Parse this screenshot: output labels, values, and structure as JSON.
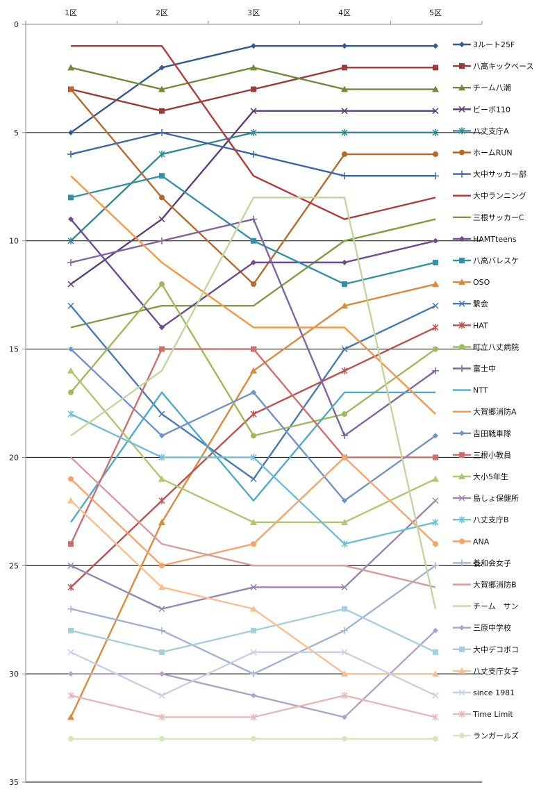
{
  "chart_data": {
    "type": "line",
    "title": "",
    "xlabel": "",
    "ylabel": "",
    "categories": [
      "1区",
      "2区",
      "3区",
      "4区",
      "5区"
    ],
    "ylim": [
      0,
      35
    ],
    "y_inverted": true,
    "yticks": [
      0,
      5,
      10,
      15,
      20,
      25,
      30,
      35
    ],
    "grid": "horizontal major",
    "legend_position": "right",
    "series": [
      {
        "name": "3ルート25F",
        "color": "#2e5a96",
        "marker": "diamond",
        "values": [
          5,
          2,
          1,
          1,
          1
        ]
      },
      {
        "name": "八高キックベース",
        "color": "#9a3b38",
        "marker": "square",
        "values": [
          3,
          4,
          3,
          2,
          2
        ]
      },
      {
        "name": "チーム八潮",
        "color": "#6f8c36",
        "marker": "triangle",
        "values": [
          2,
          3,
          2,
          3,
          3
        ]
      },
      {
        "name": "ビーボ110",
        "color": "#5a3f79",
        "marker": "x",
        "values": [
          12,
          9,
          4,
          4,
          4
        ]
      },
      {
        "name": "八丈支庁A",
        "color": "#2e8a99",
        "marker": "star",
        "values": [
          10,
          6,
          5,
          5,
          5
        ]
      },
      {
        "name": "ホームRUN",
        "color": "#b8692a",
        "marker": "circle",
        "values": [
          3,
          8,
          12,
          6,
          6
        ]
      },
      {
        "name": "大中サッカー部",
        "color": "#3a67a8",
        "marker": "plus",
        "values": [
          6,
          5,
          6,
          7,
          7
        ]
      },
      {
        "name": "大中ランニング",
        "color": "#b23a36",
        "marker": "none",
        "values": [
          1,
          1,
          7,
          9,
          8
        ]
      },
      {
        "name": "三根サッカーC",
        "color": "#7d9c3c",
        "marker": "none",
        "values": [
          14,
          13,
          13,
          10,
          9
        ]
      },
      {
        "name": "HAMTteens",
        "color": "#6c4b92",
        "marker": "diamond",
        "values": [
          9,
          14,
          11,
          11,
          10
        ]
      },
      {
        "name": "八高バレスケ",
        "color": "#3390a8",
        "marker": "square",
        "values": [
          8,
          7,
          10,
          12,
          11
        ]
      },
      {
        "name": "OSO",
        "color": "#dc8a3a",
        "marker": "triangle",
        "values": [
          32,
          23,
          16,
          13,
          12
        ]
      },
      {
        "name": "繋会",
        "color": "#4579b8",
        "marker": "x",
        "values": [
          13,
          18,
          21,
          15,
          13
        ]
      },
      {
        "name": "HAT",
        "color": "#c0504d",
        "marker": "star",
        "values": [
          26,
          22,
          18,
          16,
          14
        ]
      },
      {
        "name": "町立八丈病院",
        "color": "#9bbb59",
        "marker": "circle",
        "values": [
          17,
          12,
          19,
          18,
          15
        ]
      },
      {
        "name": "富士中",
        "color": "#8064a2",
        "marker": "plus",
        "values": [
          11,
          10,
          9,
          19,
          16
        ]
      },
      {
        "name": "NTT",
        "color": "#4bacc6",
        "marker": "none",
        "values": [
          23,
          17,
          22,
          17,
          17
        ]
      },
      {
        "name": "大賀郷消防A",
        "color": "#f79646",
        "marker": "none",
        "values": [
          7,
          11,
          14,
          14,
          18
        ]
      },
      {
        "name": "吉田戦車隊",
        "color": "#6f93c9",
        "marker": "diamond",
        "values": [
          15,
          19,
          17,
          22,
          19
        ]
      },
      {
        "name": "三根小教員",
        "color": "#d06e6b",
        "marker": "square",
        "values": [
          24,
          15,
          15,
          20,
          20
        ]
      },
      {
        "name": "大小5年生",
        "color": "#adc86e",
        "marker": "triangle",
        "values": [
          16,
          21,
          23,
          23,
          21
        ]
      },
      {
        "name": "島しょ保健所",
        "color": "#9985b5",
        "marker": "x",
        "values": [
          25,
          27,
          26,
          26,
          22
        ]
      },
      {
        "name": "八丈支庁B",
        "color": "#6cbfd5",
        "marker": "star",
        "values": [
          18,
          20,
          20,
          24,
          23
        ]
      },
      {
        "name": "ANA",
        "color": "#f9a26a",
        "marker": "circle",
        "values": [
          21,
          25,
          24,
          20,
          24
        ]
      },
      {
        "name": "養和会女子",
        "color": "#9fb2d6",
        "marker": "plus",
        "values": [
          27,
          28,
          30,
          28,
          25
        ]
      },
      {
        "name": "大賀郷消防B",
        "color": "#d99a98",
        "marker": "none",
        "values": [
          20,
          24,
          25,
          25,
          26
        ]
      },
      {
        "name": "チーム　サン",
        "color": "#c3d69b",
        "marker": "none",
        "values": [
          19,
          16,
          8,
          8,
          27
        ]
      },
      {
        "name": "三原中学校",
        "color": "#b3a2c7",
        "marker": "diamond",
        "values": [
          30,
          30,
          31,
          32,
          28
        ]
      },
      {
        "name": "大中デコボコ",
        "color": "#a5cfdc",
        "marker": "square",
        "values": [
          28,
          29,
          28,
          27,
          29
        ]
      },
      {
        "name": "八丈支庁女子",
        "color": "#fbbf8f",
        "marker": "triangle",
        "values": [
          22,
          26,
          27,
          30,
          30
        ]
      },
      {
        "name": "since 1981",
        "color": "#c6d0e6",
        "marker": "x",
        "values": [
          29,
          31,
          29,
          29,
          31
        ]
      },
      {
        "name": "Time Limit",
        "color": "#e6b9b8",
        "marker": "star",
        "values": [
          31,
          32,
          32,
          31,
          32
        ]
      },
      {
        "name": "ランガールズ",
        "color": "#d7e4bd",
        "marker": "circle",
        "values": [
          33,
          33,
          33,
          33,
          33
        ]
      }
    ]
  }
}
